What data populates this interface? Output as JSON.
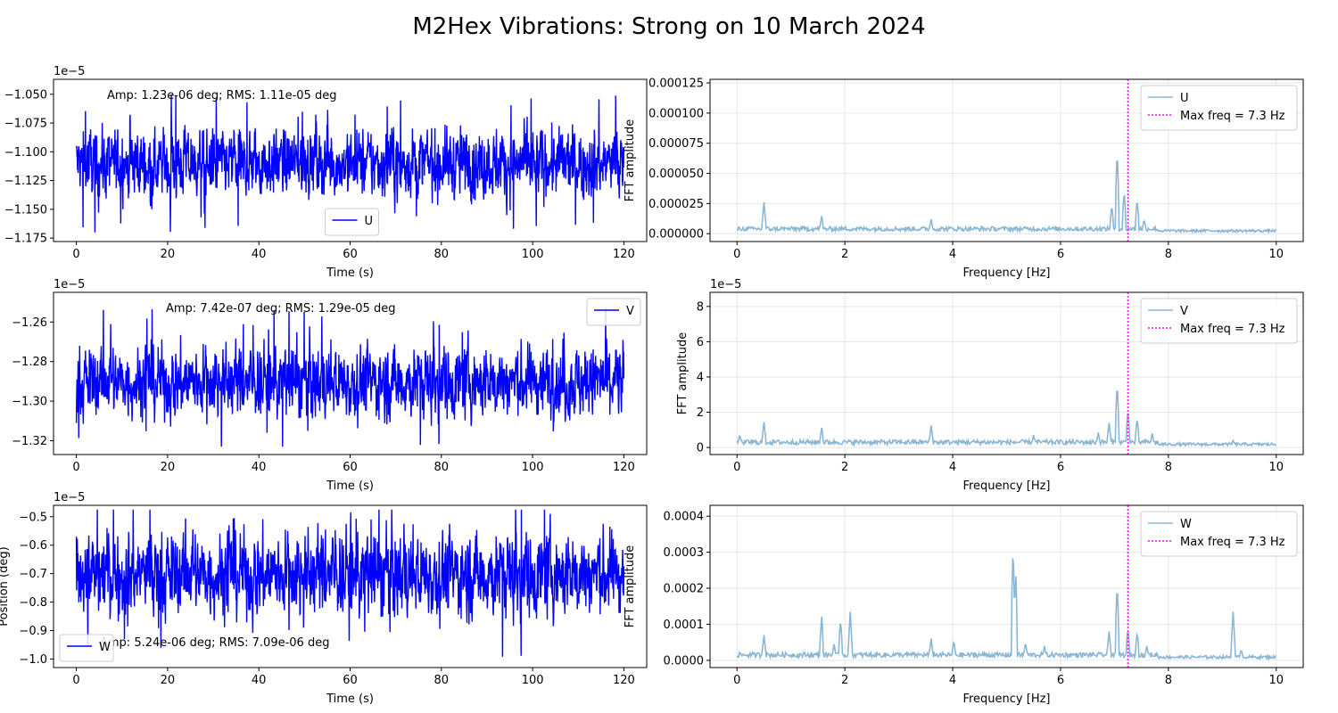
{
  "figure": {
    "title": "M2Hex Vibrations: Strong on 10 March 2024"
  },
  "colors": {
    "time_series": "#0000ff",
    "fft": "#8bb7d6",
    "max_freq_line": "#ff00ff",
    "grid": "#e6e6e6"
  },
  "chart_data": [
    {
      "type": "line",
      "panel": "U time series",
      "xlabel": "Time (s)",
      "ylabel": "",
      "xlim": [
        -5,
        125
      ],
      "ylim": [
        -11.78,
        -10.37
      ],
      "offset_label": "1e−5",
      "xticks": [
        "0",
        "20",
        "40",
        "60",
        "80",
        "100",
        "120"
      ],
      "yticks": [
        "−1.050",
        "−1.075",
        "−1.100",
        "−1.125",
        "−1.150",
        "−1.175"
      ],
      "ytick_values": [
        -10.5,
        -10.75,
        -11.0,
        -11.25,
        -11.5,
        -11.75
      ],
      "annotation": "Amp: 1.23e-06 deg; RMS: 1.11e-05 deg",
      "legend": {
        "placement": "lower center",
        "entries": [
          "U"
        ]
      },
      "series": [
        {
          "name": "U",
          "x_range": [
            0,
            120
          ],
          "center": -11.1,
          "min": -11.7,
          "max": -10.47,
          "typical_spread": 0.18
        }
      ],
      "grid": false
    },
    {
      "type": "line",
      "panel": "V time series",
      "xlabel": "Time (s)",
      "ylabel": "",
      "xlim": [
        -5,
        125
      ],
      "ylim": [
        -13.27,
        -12.45
      ],
      "offset_label": "1e−5",
      "xticks": [
        "0",
        "20",
        "40",
        "60",
        "80",
        "100",
        "120"
      ],
      "yticks": [
        "−1.26",
        "−1.28",
        "−1.30",
        "−1.32"
      ],
      "ytick_values": [
        -12.6,
        -12.8,
        -13.0,
        -13.2
      ],
      "annotation": "Amp: 7.42e-07 deg;  RMS: 1.29e-05 deg",
      "legend": {
        "placement": "upper right",
        "entries": [
          "V"
        ]
      },
      "series": [
        {
          "name": "V",
          "x_range": [
            0,
            120
          ],
          "center": -12.9,
          "min": -13.23,
          "max": -12.48,
          "typical_spread": 0.11
        }
      ],
      "grid": false
    },
    {
      "type": "line",
      "panel": "W time series",
      "xlabel": "Time (s)",
      "ylabel": "Position (deg)",
      "xlim": [
        -5,
        125
      ],
      "ylim": [
        -10.3,
        -4.6
      ],
      "offset_label": "1e−5",
      "xticks": [
        "0",
        "20",
        "40",
        "60",
        "80",
        "100",
        "120"
      ],
      "yticks": [
        "−0.5",
        "−0.6",
        "−0.7",
        "−0.8",
        "−0.9",
        "−1.0"
      ],
      "ytick_values": [
        -5,
        -6,
        -7,
        -8,
        -9,
        -10
      ],
      "annotation": "Amp: 5.24e-06 deg; RMS: 7.09e-06 deg",
      "legend": {
        "placement": "lower left",
        "entries": [
          "W"
        ]
      },
      "series": [
        {
          "name": "W",
          "x_range": [
            0,
            120
          ],
          "center": -7.0,
          "min": -10.0,
          "max": -4.75,
          "typical_spread": 0.9
        }
      ],
      "grid": false
    },
    {
      "type": "line",
      "panel": "U FFT",
      "xlabel": "Frequency [Hz]",
      "ylabel": "FFT amplitude",
      "xlim": [
        -0.5,
        10.5
      ],
      "ylim": [
        -6.5e-06,
        0.000128
      ],
      "offset_label": "",
      "xticks": [
        "0",
        "2",
        "4",
        "6",
        "8",
        "10"
      ],
      "xtick_values": [
        0,
        2,
        4,
        6,
        8,
        10
      ],
      "yticks": [
        "0.000000",
        "0.000025",
        "0.000050",
        "0.000075",
        "0.000100",
        "0.000125"
      ],
      "ytick_values": [
        0,
        2.5e-05,
        5e-05,
        7.5e-05,
        0.0001,
        0.000125
      ],
      "max_freq": 7.25,
      "legend": {
        "placement": "upper right",
        "entries": [
          "U",
          "Max freq = 7.3 Hz"
        ]
      },
      "series": [
        {
          "name": "U",
          "baseline": 4e-06,
          "peaks": [
            [
              0.5,
              2.6e-05
            ],
            [
              1.57,
              1.5e-05
            ],
            [
              3.6,
              1.2e-05
            ],
            [
              6.95,
              2.4e-05
            ],
            [
              7.05,
              7e-05
            ],
            [
              7.18,
              3.6e-05
            ],
            [
              7.42,
              2.9e-05
            ],
            [
              7.55,
              1.2e-05
            ]
          ]
        }
      ],
      "grid": true
    },
    {
      "type": "line",
      "panel": "V FFT",
      "xlabel": "Frequency [Hz]",
      "ylabel": "FFT amplitude",
      "xlim": [
        -0.5,
        10.5
      ],
      "ylim": [
        -0.4,
        8.8
      ],
      "offset_label": "1e−5",
      "xticks": [
        "0",
        "2",
        "4",
        "6",
        "8",
        "10"
      ],
      "xtick_values": [
        0,
        2,
        4,
        6,
        8,
        10
      ],
      "yticks": [
        "0",
        "2",
        "4",
        "6",
        "8"
      ],
      "ytick_values": [
        0,
        2,
        4,
        6,
        8
      ],
      "max_freq": 7.25,
      "legend": {
        "placement": "upper right",
        "entries": [
          "V",
          "Max freq = 7.3 Hz"
        ]
      },
      "series": [
        {
          "name": "V",
          "baseline": 0.3,
          "peaks": [
            [
              0.05,
              0.75
            ],
            [
              0.5,
              1.45
            ],
            [
              1.57,
              1.15
            ],
            [
              3.6,
              1.25
            ],
            [
              5.5,
              0.7
            ],
            [
              6.7,
              0.85
            ],
            [
              6.9,
              1.4
            ],
            [
              7.05,
              3.7
            ],
            [
              7.25,
              2.2
            ],
            [
              7.42,
              1.7
            ],
            [
              7.7,
              0.8
            ],
            [
              9.2,
              0.4
            ]
          ]
        }
      ],
      "grid": true
    },
    {
      "type": "line",
      "panel": "W FFT",
      "xlabel": "Frequency [Hz]",
      "ylabel": "FFT amplitude",
      "xlim": [
        -0.5,
        10.5
      ],
      "ylim": [
        -2e-05,
        0.00043
      ],
      "offset_label": "",
      "xticks": [
        "0",
        "2",
        "4",
        "6",
        "8",
        "10"
      ],
      "xtick_values": [
        0,
        2,
        4,
        6,
        8,
        10
      ],
      "yticks": [
        "0.0000",
        "0.0001",
        "0.0002",
        "0.0003",
        "0.0004"
      ],
      "ytick_values": [
        0,
        0.0001,
        0.0002,
        0.0003,
        0.0004
      ],
      "max_freq": 7.25,
      "legend": {
        "placement": "upper right",
        "entries": [
          "W",
          "Max freq = 7.3 Hz"
        ]
      },
      "series": [
        {
          "name": "W",
          "baseline": 1.5e-05,
          "peaks": [
            [
              0.5,
              7e-05
            ],
            [
              1.57,
              0.000125
            ],
            [
              1.8,
              4.5e-05
            ],
            [
              1.92,
              0.000115
            ],
            [
              2.1,
              0.000135
            ],
            [
              3.6,
              6e-05
            ],
            [
              4.02,
              5.5e-05
            ],
            [
              5.12,
              0.00032
            ],
            [
              5.17,
              0.00024
            ],
            [
              5.35,
              5e-05
            ],
            [
              5.7,
              4e-05
            ],
            [
              6.9,
              8e-05
            ],
            [
              7.05,
              0.000215
            ],
            [
              7.25,
              9e-05
            ],
            [
              7.42,
              8e-05
            ],
            [
              7.6,
              4e-05
            ],
            [
              9.2,
              0.000135
            ],
            [
              9.35,
              3e-05
            ]
          ]
        }
      ],
      "grid": true
    }
  ]
}
